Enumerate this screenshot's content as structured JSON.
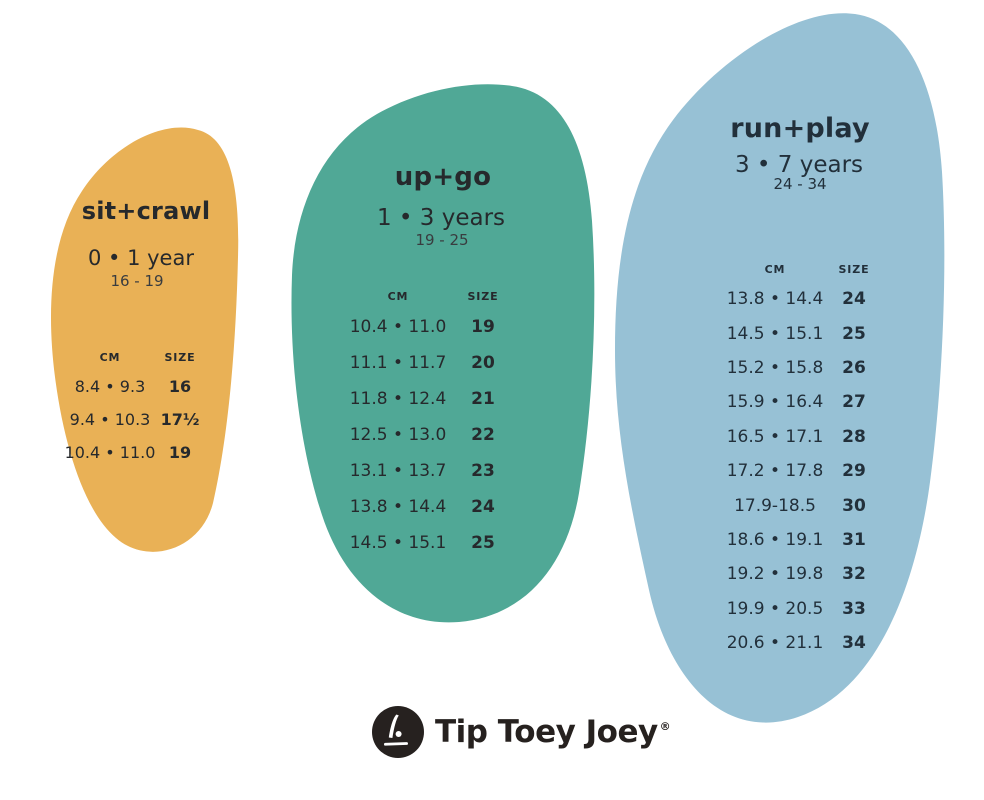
{
  "page": {
    "background": "#ffffff"
  },
  "chart_data": [
    {
      "type": "table",
      "title": "sit+crawl",
      "age": "0 • 1 year",
      "size_range": "16 - 19",
      "color": "#e9b156",
      "columns": [
        "CM",
        "SIZE"
      ],
      "rows": [
        [
          "8.4 • 9.3",
          "16"
        ],
        [
          "9.4 • 10.3",
          "17½"
        ],
        [
          "10.4 • 11.0",
          "19"
        ]
      ]
    },
    {
      "type": "table",
      "title": "up+go",
      "age": "1 • 3 years",
      "size_range": "19 - 25",
      "color": "#50a896",
      "columns": [
        "CM",
        "SIZE"
      ],
      "rows": [
        [
          "10.4 • 11.0",
          "19"
        ],
        [
          "11.1 • 11.7",
          "20"
        ],
        [
          "11.8 • 12.4",
          "21"
        ],
        [
          "12.5 • 13.0",
          "22"
        ],
        [
          "13.1 • 13.7",
          "23"
        ],
        [
          "13.8 • 14.4",
          "24"
        ],
        [
          "14.5 • 15.1",
          "25"
        ]
      ]
    },
    {
      "type": "table",
      "title": "run+play",
      "age": "3 • 7 years",
      "size_range": "24 - 34",
      "color": "#97c1d5",
      "columns": [
        "CM",
        "SIZE"
      ],
      "rows": [
        [
          "13.8 • 14.4",
          "24"
        ],
        [
          "14.5 • 15.1",
          "25"
        ],
        [
          "15.2 • 15.8",
          "26"
        ],
        [
          "15.9 • 16.4",
          "27"
        ],
        [
          "16.5 • 17.1",
          "28"
        ],
        [
          "17.2 • 17.8",
          "29"
        ],
        [
          "17.9-18.5",
          "30"
        ],
        [
          "18.6 • 19.1",
          "31"
        ],
        [
          "19.2 • 19.8",
          "32"
        ],
        [
          "19.9 • 20.5",
          "33"
        ],
        [
          "20.6 • 21.1",
          "34"
        ]
      ]
    }
  ],
  "brand": {
    "logo_text": "Tip Toey Joey",
    "registered_mark": "®",
    "logo_icon": "bending-toddler",
    "logo_color": "#26211f"
  }
}
